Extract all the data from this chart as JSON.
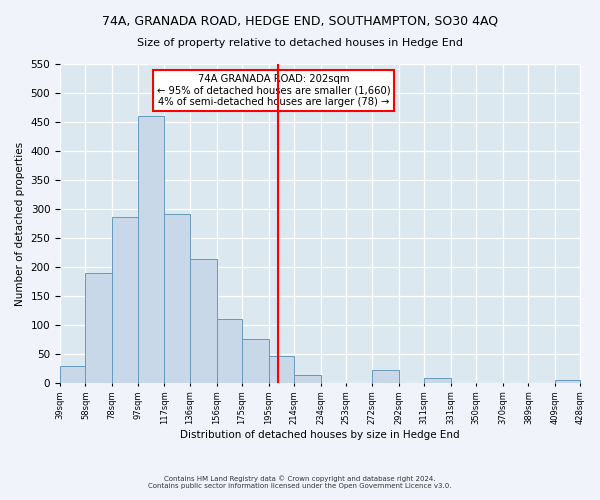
{
  "title1": "74A, GRANADA ROAD, HEDGE END, SOUTHAMPTON, SO30 4AQ",
  "title2": "Size of property relative to detached houses in Hedge End",
  "xlabel": "Distribution of detached houses by size in Hedge End",
  "ylabel": "Number of detached properties",
  "bin_edges": [
    39,
    58,
    78,
    97,
    117,
    136,
    156,
    175,
    195,
    214,
    234,
    253,
    272,
    292,
    311,
    331,
    350,
    370,
    389,
    409,
    428
  ],
  "bin_labels": [
    "39sqm",
    "58sqm",
    "78sqm",
    "97sqm",
    "117sqm",
    "136sqm",
    "156sqm",
    "175sqm",
    "195sqm",
    "214sqm",
    "234sqm",
    "253sqm",
    "272sqm",
    "292sqm",
    "311sqm",
    "331sqm",
    "350sqm",
    "370sqm",
    "389sqm",
    "409sqm",
    "428sqm"
  ],
  "bar_heights": [
    30,
    190,
    287,
    460,
    291,
    213,
    110,
    75,
    47,
    13,
    0,
    0,
    22,
    0,
    8,
    0,
    0,
    0,
    0,
    5
  ],
  "bar_color": "#c8d8e8",
  "bar_edge_color": "#6699bb",
  "vline_x": 202,
  "vline_color": "red",
  "ylim": [
    0,
    550
  ],
  "yticks": [
    0,
    50,
    100,
    150,
    200,
    250,
    300,
    350,
    400,
    450,
    500,
    550
  ],
  "annotation_title": "74A GRANADA ROAD: 202sqm",
  "annotation_line1": "← 95% of detached houses are smaller (1,660)",
  "annotation_line2": "4% of semi-detached houses are larger (78) →",
  "annotation_box_color": "white",
  "annotation_box_edge": "red",
  "footer1": "Contains HM Land Registry data © Crown copyright and database right 2024.",
  "footer2": "Contains public sector information licensed under the Open Government Licence v3.0.",
  "fig_bg_color": "#f0f4fa",
  "plot_bg_color": "#dce8f0"
}
